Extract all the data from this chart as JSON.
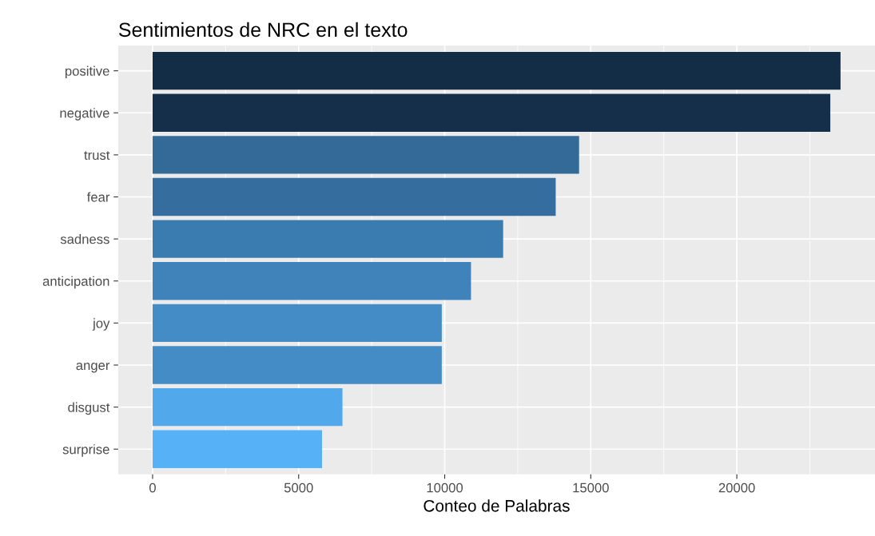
{
  "chart_data": {
    "type": "bar",
    "orientation": "horizontal",
    "title": "Sentimientos de NRC en el texto",
    "xlabel": "Conteo de Palabras",
    "categories": [
      "positive",
      "negative",
      "trust",
      "fear",
      "sadness",
      "anticipation",
      "joy",
      "anger",
      "disgust",
      "surprise"
    ],
    "values": [
      23550,
      23200,
      14600,
      13800,
      12000,
      10900,
      9900,
      9900,
      6500,
      5800
    ],
    "colors": [
      "#142d47",
      "#152f4a",
      "#336a98",
      "#356e9e",
      "#3a7bb0",
      "#3f83ba",
      "#438cc5",
      "#438cc5",
      "#51a8eb",
      "#56b1f7"
    ],
    "xlim": [
      -1180,
      24730
    ],
    "xticks": [
      0,
      5000,
      10000,
      15000,
      20000
    ],
    "grid": true,
    "legend": false
  }
}
